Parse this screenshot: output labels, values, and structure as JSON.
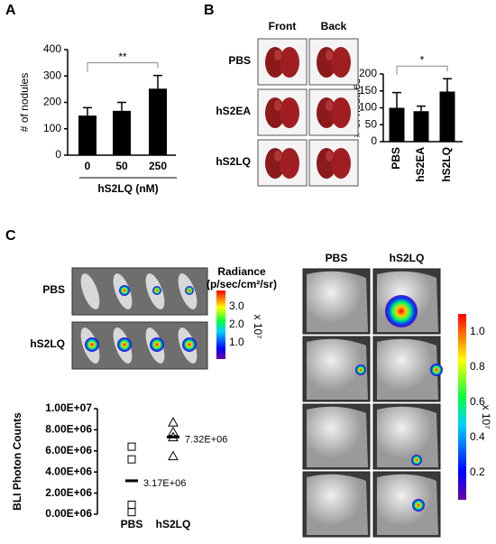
{
  "panel_labels": [
    "A",
    "B",
    "C"
  ],
  "chart_data": [
    {
      "type": "bar",
      "ylabel": "# of nodules",
      "xlabel": "hS2LQ (nM)",
      "categories": [
        "0",
        "50",
        "250"
      ],
      "values": [
        150,
        168,
        252
      ],
      "errors": [
        30,
        32,
        50
      ],
      "color": "#000000",
      "ylim": [
        0,
        400
      ],
      "yticks": [
        0,
        100,
        200,
        300,
        400
      ],
      "significance": [
        {
          "label": "**",
          "between": [
            "0",
            "250"
          ]
        }
      ]
    },
    {
      "type": "bar",
      "ylabel": "# of nodules",
      "rotate_labels": true,
      "categories": [
        "PBS",
        "hS2EA",
        "hS2LQ"
      ],
      "values": [
        100,
        90,
        148
      ],
      "errors": [
        45,
        15,
        38
      ],
      "color": "#000000",
      "ylim": [
        0,
        200
      ],
      "yticks": [
        0,
        50,
        100,
        150,
        200
      ],
      "significance": [
        {
          "label": "*",
          "between": [
            "PBS",
            "hS2LQ"
          ]
        }
      ]
    },
    {
      "type": "dot",
      "ylabel": "BLI Photon Counts",
      "groups": [
        {
          "name": "PBS",
          "marker": "square",
          "values": [
            6400000,
            5200000,
            900000,
            200000
          ],
          "mean": 3170000,
          "mean_label": "3.17E+06"
        },
        {
          "name": "hS2LQ",
          "marker": "triangle",
          "values": [
            8700000,
            7800000,
            7300000,
            5500000
          ],
          "mean": 7320000,
          "mean_label": "7.32E+06"
        }
      ],
      "ylim": [
        0,
        10000000
      ],
      "yticks": [
        {
          "value": 0,
          "label": "0.00E+06"
        },
        {
          "value": 2000000,
          "label": "2.00E+06"
        },
        {
          "value": 4000000,
          "label": "4.00E+06"
        },
        {
          "value": 6000000,
          "label": "6.00E+06"
        },
        {
          "value": 8000000,
          "label": "8.00E+06"
        },
        {
          "value": 10000000,
          "label": "1.00E+07"
        }
      ]
    }
  ],
  "panel_b": {
    "columns": [
      "Front",
      "Back"
    ],
    "rows": [
      "PBS",
      "hS2EA",
      "hS2LQ"
    ]
  },
  "panel_c": {
    "mice_rows": [
      "PBS",
      "hS2LQ"
    ],
    "radiance_title": "Radiance",
    "radiance_unit": "(p/sec/cm²/sr)",
    "radiance_ticks": [
      "3.0",
      "2.0",
      "1.0"
    ],
    "multiplier": "x 10⁷",
    "lung_columns": [
      "PBS",
      "hS2LQ"
    ],
    "lung_ticks": [
      "1.0",
      "0.8",
      "0.6",
      "0.4",
      "0.2"
    ]
  }
}
